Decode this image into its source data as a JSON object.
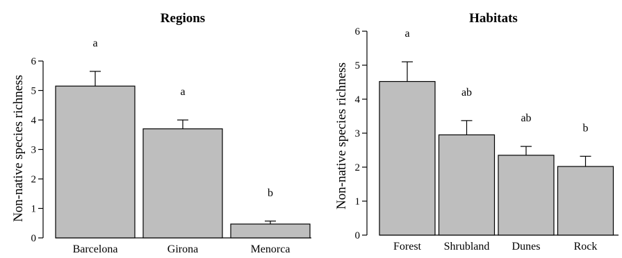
{
  "chart_data": [
    {
      "type": "bar",
      "title": "Regions",
      "ylabel": "Non-native species richness",
      "xlabel": "",
      "ylim": [
        0,
        6
      ],
      "yticks": [
        0,
        1,
        2,
        3,
        4,
        5,
        6
      ],
      "grid": false,
      "categories": [
        "Barcelona",
        "Girona",
        "Menorca"
      ],
      "values": [
        5.15,
        3.7,
        0.47
      ],
      "errors": [
        0.5,
        0.3,
        0.1
      ],
      "significance_labels": [
        "a",
        "a",
        "b"
      ],
      "bar_color": "#bebebe"
    },
    {
      "type": "bar",
      "title": "Habitats",
      "ylabel": "Non-native species richness",
      "xlabel": "",
      "ylim": [
        0,
        6
      ],
      "yticks": [
        0,
        1,
        2,
        3,
        4,
        5,
        6
      ],
      "grid": false,
      "categories": [
        "Forest",
        "Shrubland",
        "Dunes",
        "Rock"
      ],
      "values": [
        4.52,
        2.95,
        2.35,
        2.02
      ],
      "errors": [
        0.58,
        0.42,
        0.26,
        0.3
      ],
      "significance_labels": [
        "a",
        "ab",
        "ab",
        "b"
      ],
      "bar_color": "#bebebe"
    }
  ]
}
